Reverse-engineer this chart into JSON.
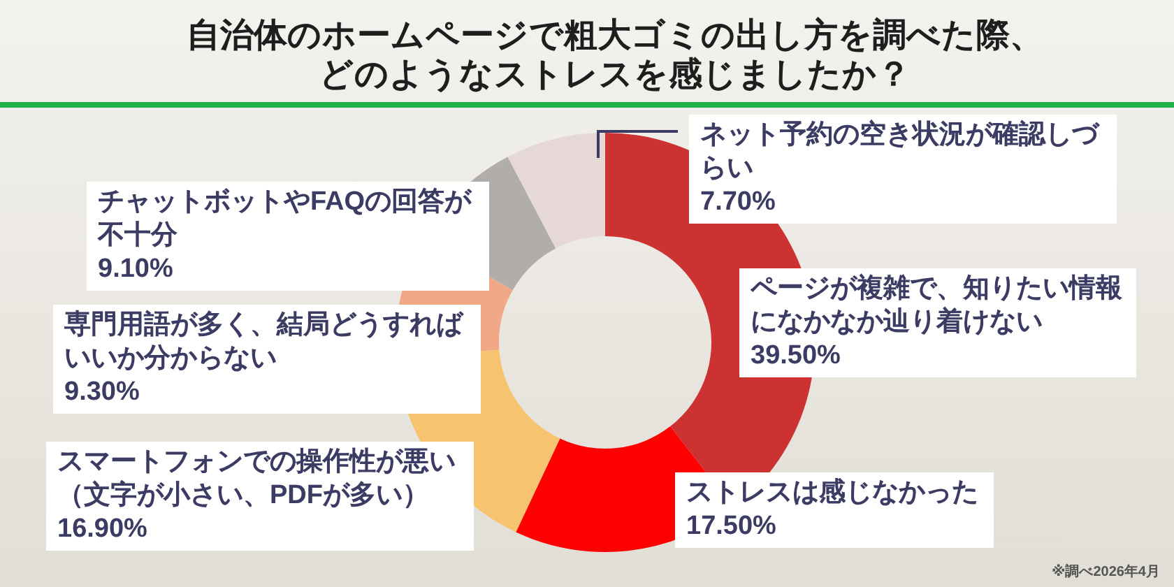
{
  "chart_data": {
    "type": "donut",
    "title": "自治体のホームページで粗大ゴミの出し方を調べた際、どのようなストレスを感じましたか？",
    "categories": [
      "ページが複雑で、知りたい情報になかなか辿り着けない",
      "ストレスは感じなかった",
      "スマートフォンでの操作性が悪い（文字が小さい、PDFが多い）",
      "専門用語が多く、結局どうすればいいか分からない",
      "チャットボットやFAQの回答が不十分",
      "ネット予約の空き状況が確認しづらい"
    ],
    "values": [
      39.5,
      17.5,
      16.9,
      9.3,
      9.1,
      7.7
    ],
    "colors": [
      "#cc3232",
      "#fe0000",
      "#f6c46f",
      "#f1a886",
      "#b0adaa",
      "#e7d8d8"
    ],
    "value_labels": [
      "39.50%",
      "17.50%",
      "16.90%",
      "9.30%",
      "9.10%",
      "7.70%"
    ],
    "annotations": [
      "※調べ2026年4月"
    ]
  }
}
